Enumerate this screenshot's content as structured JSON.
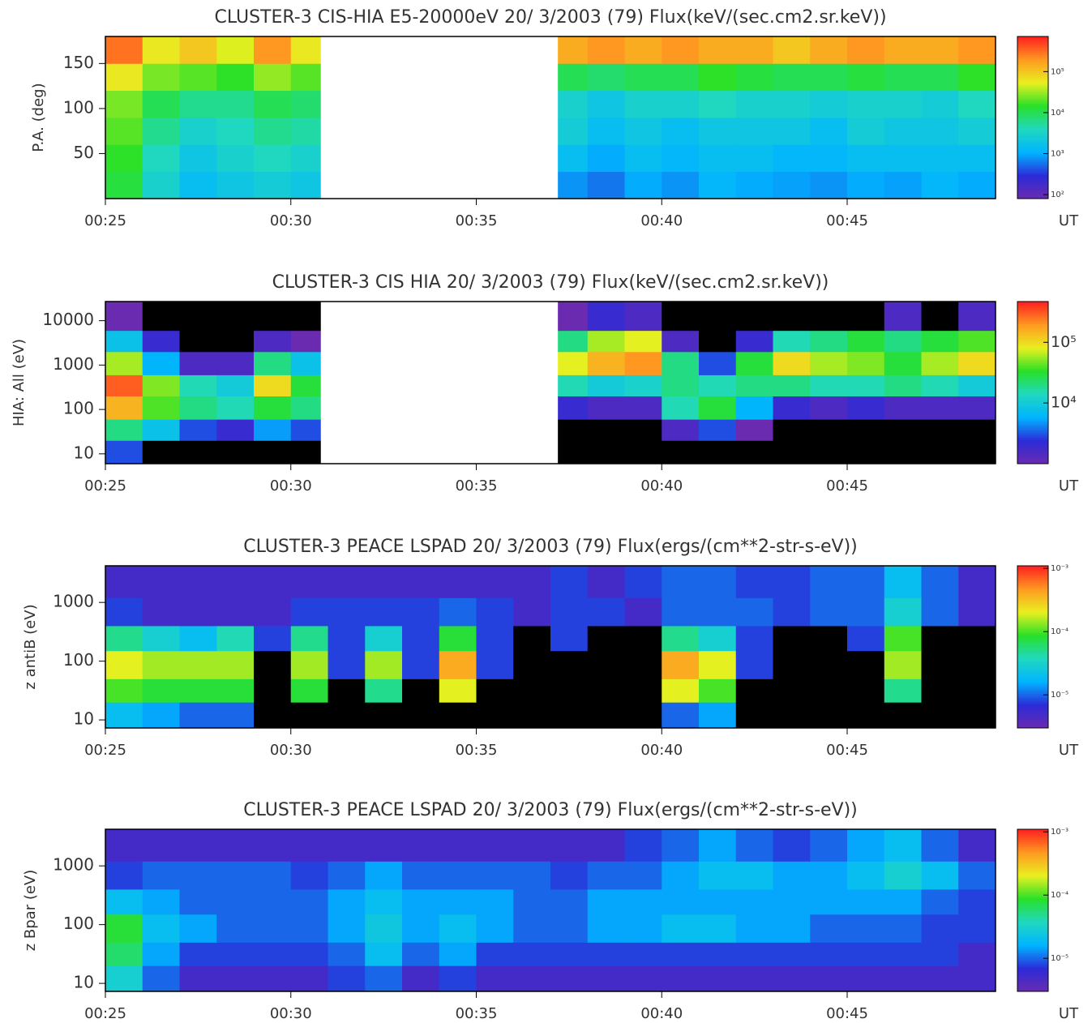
{
  "chart_data": [
    {
      "type": "heatmap",
      "title": "CLUSTER-3  CIS-HIA E5-20000eV 20/ 3/2003 (79) Flux(keV/(sec.cm2.sr.keV))",
      "ylabel": "P.A. (deg)",
      "xlabel": "UT",
      "xlim": [
        25,
        49
      ],
      "xticks": [
        {
          "value": 25,
          "label": "00:25"
        },
        {
          "value": 30,
          "label": "00:30"
        },
        {
          "value": 35,
          "label": "00:35"
        },
        {
          "value": 40,
          "label": "00:40"
        },
        {
          "value": 45,
          "label": "00:45"
        }
      ],
      "ylim": [
        0,
        180
      ],
      "yticks": [
        50,
        100,
        150
      ],
      "ylog": false,
      "zlim": [
        80,
        720000
      ],
      "zlog": true,
      "zticks": [
        {
          "value": 100,
          "label": "10²"
        },
        {
          "value": 1000,
          "label": "10³"
        },
        {
          "value": 10000,
          "label": "10⁴"
        },
        {
          "value": 100000,
          "label": "10⁵"
        }
      ],
      "colormap": [
        "#6a2bb0",
        "#2b2bd8",
        "#00b4ff",
        "#20d8c0",
        "#28e028",
        "#e8f020",
        "#ff9a20",
        "#ff2020"
      ],
      "under_color": "#000000",
      "x_edges": [
        25,
        26,
        27,
        28,
        29,
        30,
        30.8,
        37.2,
        38,
        39,
        40,
        41,
        42,
        43,
        44,
        45,
        46,
        47,
        48,
        49
      ],
      "y_edges": [
        0,
        30,
        60,
        90,
        120,
        150,
        180
      ],
      "z": [
        [
          12000,
          3000,
          1500,
          2000,
          2500,
          2000,
          null,
          800,
          600,
          1000,
          800,
          1200,
          1000,
          900,
          800,
          1000,
          900,
          1200,
          1000
        ],
        [
          15000,
          4000,
          2000,
          3000,
          4000,
          3000,
          null,
          1500,
          1000,
          1500,
          1200,
          1500,
          1500,
          1200,
          1200,
          1500,
          1500,
          1500,
          1500
        ],
        [
          20000,
          6000,
          3000,
          4000,
          6000,
          5000,
          null,
          2500,
          1500,
          2000,
          1500,
          2000,
          2000,
          2000,
          1500,
          2500,
          2000,
          2000,
          2500
        ],
        [
          25000,
          10000,
          6000,
          6000,
          10000,
          8000,
          null,
          3000,
          2000,
          3000,
          3000,
          4000,
          3000,
          3000,
          2500,
          3000,
          3000,
          2500,
          4000
        ],
        [
          60000,
          25000,
          20000,
          15000,
          30000,
          20000,
          null,
          10000,
          8000,
          10000,
          10000,
          15000,
          12000,
          10000,
          10000,
          12000,
          10000,
          10000,
          15000
        ],
        [
          300000,
          60000,
          100000,
          50000,
          200000,
          60000,
          null,
          150000,
          200000,
          150000,
          200000,
          150000,
          150000,
          100000,
          150000,
          200000,
          150000,
          150000,
          200000
        ]
      ]
    },
    {
      "type": "heatmap",
      "title": "CLUSTER-3  CIS HIA 20/ 3/2003 (79) Flux(keV/(sec.cm2.sr.keV))",
      "ylabel": "HIA: All (eV)",
      "xlabel": "UT",
      "xlim": [
        25,
        49
      ],
      "xticks": [
        {
          "value": 25,
          "label": "00:25"
        },
        {
          "value": 30,
          "label": "00:30"
        },
        {
          "value": 35,
          "label": "00:35"
        },
        {
          "value": 40,
          "label": "00:40"
        },
        {
          "value": 45,
          "label": "00:45"
        }
      ],
      "ylim": [
        6,
        27000
      ],
      "yticks": [
        10,
        100,
        1000,
        10000
      ],
      "ylog": true,
      "zlim": [
        1000,
        470000
      ],
      "zlog": true,
      "zticks": [
        {
          "value": 10000,
          "label": "10⁴"
        },
        {
          "value": 100000,
          "label": "10⁵"
        }
      ],
      "colormap": [
        "#6a2bb0",
        "#2b2bd8",
        "#00b4ff",
        "#20d8c0",
        "#28e028",
        "#e8f020",
        "#ff9a20",
        "#ff2020"
      ],
      "under_color": "#000000",
      "x_edges": [
        25,
        26,
        27,
        28,
        29,
        30,
        30.8,
        37.2,
        38,
        39,
        40,
        41,
        42,
        43,
        44,
        45,
        46,
        47,
        48,
        49
      ],
      "y_edges": [
        6,
        20,
        60,
        200,
        600,
        2000,
        6000,
        27000
      ],
      "z": [
        [
          3000,
          800,
          300,
          300,
          300,
          300,
          null,
          300,
          300,
          300,
          300,
          300,
          300,
          300,
          300,
          300,
          300,
          300,
          300
        ],
        [
          20000,
          8000,
          3000,
          2000,
          5000,
          3000,
          null,
          800,
          500,
          500,
          1500,
          3000,
          1000,
          500,
          500,
          500,
          500,
          500,
          500
        ],
        [
          150000,
          40000,
          20000,
          15000,
          30000,
          20000,
          null,
          2000,
          1500,
          1500,
          15000,
          30000,
          6000,
          2000,
          1500,
          2000,
          1500,
          1500,
          1500
        ],
        [
          300000,
          50000,
          15000,
          10000,
          100000,
          30000,
          null,
          15000,
          10000,
          12000,
          20000,
          15000,
          20000,
          20000,
          15000,
          15000,
          20000,
          15000,
          10000
        ],
        [
          60000,
          6000,
          1500,
          1500,
          20000,
          8000,
          null,
          80000,
          150000,
          200000,
          20000,
          3000,
          30000,
          100000,
          60000,
          50000,
          30000,
          60000,
          100000
        ],
        [
          8000,
          2000,
          500,
          500,
          1500,
          1000,
          null,
          20000,
          60000,
          80000,
          1500,
          500,
          2000,
          15000,
          20000,
          30000,
          20000,
          30000,
          40000
        ],
        [
          1000,
          500,
          500,
          300,
          300,
          300,
          null,
          1000,
          2000,
          1500,
          300,
          300,
          300,
          300,
          500,
          800,
          1500,
          800,
          1500
        ]
      ]
    },
    {
      "type": "heatmap",
      "title": "CLUSTER-3  PEACE LSPAD 20/ 3/2003 (79) Flux(ergs/(cm**2-str-s-eV))",
      "ylabel": "z antiB (eV)",
      "xlabel": "UT",
      "xlim": [
        25,
        49
      ],
      "xticks": [
        {
          "value": 25,
          "label": "00:25"
        },
        {
          "value": 30,
          "label": "00:30"
        },
        {
          "value": 35,
          "label": "00:35"
        },
        {
          "value": 40,
          "label": "00:40"
        },
        {
          "value": 45,
          "label": "00:45"
        }
      ],
      "ylim": [
        7.3,
        4200
      ],
      "yticks": [
        10,
        100,
        1000
      ],
      "ylog": true,
      "zlim": [
        3e-06,
        0.0011
      ],
      "zlog": true,
      "zticks": [
        {
          "value": 1e-05,
          "label": "10⁻⁵"
        },
        {
          "value": 0.0001,
          "label": "10⁻⁴"
        },
        {
          "value": 0.001,
          "label": "10⁻³"
        }
      ],
      "colormap": [
        "#6a2bb0",
        "#2b2bd8",
        "#00b4ff",
        "#20d8c0",
        "#28e028",
        "#e8f020",
        "#ff9a20",
        "#ff2020"
      ],
      "under_color": "#000000",
      "x_edges": [
        25,
        26,
        27,
        28,
        29,
        30,
        31,
        32,
        33,
        34,
        35,
        36,
        37,
        38,
        39,
        40,
        41,
        42,
        43,
        44,
        45,
        46,
        47,
        48,
        49
      ],
      "y_edges": [
        7.3,
        20,
        50,
        150,
        400,
        1200,
        4200
      ],
      "z": [
        [
          2e-05,
          1.5e-05,
          1e-05,
          1e-05,
          2e-06,
          2e-06,
          2e-06,
          2e-06,
          2e-06,
          2e-06,
          2e-06,
          2e-06,
          2e-06,
          2e-06,
          2e-06,
          1e-05,
          1.5e-05,
          2e-06,
          2e-06,
          2e-06,
          2e-06,
          2e-06,
          2e-06,
          2e-06
        ],
        [
          0.0001,
          8e-05,
          8e-05,
          8e-05,
          2e-06,
          8e-05,
          2e-06,
          5e-05,
          2e-06,
          0.0002,
          2e-06,
          2e-06,
          2e-06,
          2e-06,
          2e-06,
          0.0002,
          0.0001,
          2e-06,
          2e-06,
          2e-06,
          2e-06,
          5e-05,
          2e-06,
          2e-06
        ],
        [
          0.0002,
          0.00015,
          0.00015,
          0.00015,
          2e-06,
          0.00015,
          8e-06,
          0.00015,
          8e-06,
          0.0004,
          8e-06,
          2e-06,
          2e-06,
          2e-06,
          2e-06,
          0.0004,
          0.0002,
          8e-06,
          2e-06,
          2e-06,
          2e-06,
          0.00015,
          2e-06,
          2e-06
        ],
        [
          5e-05,
          3e-05,
          2e-05,
          4e-05,
          8e-06,
          5e-05,
          8e-06,
          3e-05,
          8e-06,
          8e-05,
          8e-06,
          2e-06,
          8e-06,
          2e-06,
          2e-06,
          5e-05,
          3e-05,
          8e-06,
          2e-06,
          2e-06,
          8e-06,
          0.0001,
          2e-06,
          2e-06
        ],
        [
          8e-06,
          5e-06,
          5e-06,
          5e-06,
          5e-06,
          8e-06,
          8e-06,
          8e-06,
          8e-06,
          1e-05,
          8e-06,
          5e-06,
          8e-06,
          8e-06,
          5e-06,
          1e-05,
          1e-05,
          1e-05,
          8e-06,
          1e-05,
          1e-05,
          3e-05,
          1e-05,
          5e-06
        ],
        [
          5e-06,
          5e-06,
          5e-06,
          5e-06,
          5e-06,
          5e-06,
          5e-06,
          5e-06,
          5e-06,
          5e-06,
          5e-06,
          5e-06,
          8e-06,
          5e-06,
          8e-06,
          1e-05,
          1e-05,
          8e-06,
          8e-06,
          1e-05,
          1e-05,
          2e-05,
          1e-05,
          5e-06
        ]
      ]
    },
    {
      "type": "heatmap",
      "title": "CLUSTER-3  PEACE LSPAD 20/ 3/2003 (79) Flux(ergs/(cm**2-str-s-eV))",
      "ylabel": "z Bpar (eV)",
      "xlabel": "UT",
      "xlim": [
        25,
        49
      ],
      "xticks": [
        {
          "value": 25,
          "label": "00:25"
        },
        {
          "value": 30,
          "label": "00:30"
        },
        {
          "value": 35,
          "label": "00:35"
        },
        {
          "value": 40,
          "label": "00:40"
        },
        {
          "value": 45,
          "label": "00:45"
        }
      ],
      "ylim": [
        7.3,
        4200
      ],
      "yticks": [
        10,
        100,
        1000
      ],
      "ylog": true,
      "zlim": [
        3e-06,
        0.0011
      ],
      "zlog": true,
      "zticks": [
        {
          "value": 1e-05,
          "label": "10⁻⁵"
        },
        {
          "value": 0.0001,
          "label": "10⁻⁴"
        },
        {
          "value": 0.001,
          "label": "10⁻³"
        }
      ],
      "colormap": [
        "#6a2bb0",
        "#2b2bd8",
        "#00b4ff",
        "#20d8c0",
        "#28e028",
        "#e8f020",
        "#ff9a20",
        "#ff2020"
      ],
      "under_color": "#000000",
      "x_edges": [
        25,
        26,
        27,
        28,
        29,
        30,
        31,
        32,
        33,
        34,
        35,
        36,
        37,
        38,
        39,
        40,
        41,
        42,
        43,
        44,
        45,
        46,
        47,
        48,
        49
      ],
      "y_edges": [
        7.3,
        20,
        50,
        150,
        400,
        1200,
        4200
      ],
      "z": [
        [
          3e-05,
          1e-05,
          5e-06,
          5e-06,
          5e-06,
          5e-06,
          8e-06,
          1e-05,
          5e-06,
          8e-06,
          5e-06,
          5e-06,
          5e-06,
          5e-06,
          5e-06,
          5e-06,
          5e-06,
          5e-06,
          5e-06,
          5e-06,
          5e-06,
          5e-06,
          5e-06,
          5e-06
        ],
        [
          6e-05,
          1.5e-05,
          8e-06,
          8e-06,
          8e-06,
          8e-06,
          1e-05,
          2e-05,
          1e-05,
          1.5e-05,
          8e-06,
          8e-06,
          8e-06,
          8e-06,
          8e-06,
          8e-06,
          8e-06,
          8e-06,
          8e-06,
          8e-06,
          8e-06,
          8e-06,
          8e-06,
          5e-06
        ],
        [
          8e-05,
          2e-05,
          1.5e-05,
          1e-05,
          1e-05,
          1e-05,
          1.5e-05,
          2.5e-05,
          1.5e-05,
          2e-05,
          1.5e-05,
          1e-05,
          1e-05,
          1.5e-05,
          1.5e-05,
          2e-05,
          2e-05,
          1.5e-05,
          1.5e-05,
          1e-05,
          1e-05,
          1e-05,
          8e-06,
          8e-06
        ],
        [
          2e-05,
          1.5e-05,
          1e-05,
          1e-05,
          1e-05,
          1e-05,
          1.5e-05,
          2e-05,
          1.5e-05,
          1.5e-05,
          1.5e-05,
          1e-05,
          1e-05,
          1.5e-05,
          1.5e-05,
          1.5e-05,
          1.5e-05,
          1.5e-05,
          1.5e-05,
          1.5e-05,
          1.5e-05,
          1.5e-05,
          1e-05,
          8e-06
        ],
        [
          8e-06,
          1e-05,
          1e-05,
          1e-05,
          1e-05,
          8e-06,
          1e-05,
          1.5e-05,
          1e-05,
          1e-05,
          1e-05,
          1e-05,
          8e-06,
          1e-05,
          1e-05,
          1.5e-05,
          2e-05,
          2e-05,
          1.5e-05,
          1.5e-05,
          2e-05,
          3e-05,
          2e-05,
          1e-05
        ],
        [
          5e-06,
          5e-06,
          5e-06,
          5e-06,
          5e-06,
          5e-06,
          5e-06,
          5e-06,
          5e-06,
          5e-06,
          5e-06,
          5e-06,
          5e-06,
          5e-06,
          8e-06,
          1e-05,
          1.5e-05,
          1e-05,
          8e-06,
          1e-05,
          1.5e-05,
          2e-05,
          1e-05,
          5e-06
        ]
      ]
    }
  ]
}
